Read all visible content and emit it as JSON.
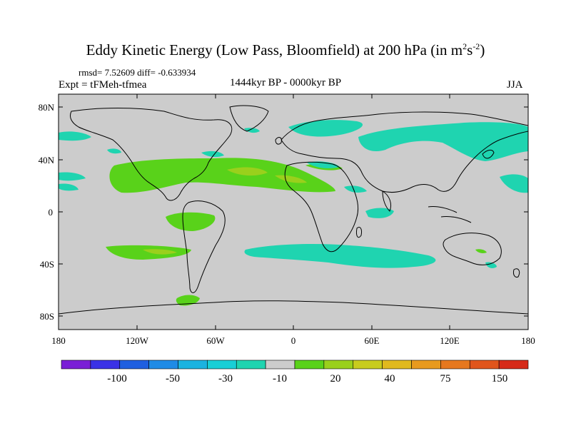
{
  "header": {
    "title": "Eddy Kinetic Energy (Low Pass, Bloomfield) at 200 hPa (in m",
    "title_sup1": "2",
    "title_mid": "s",
    "title_sup2": "-2",
    "title_end": ")",
    "stats": "rmsd= 7.52609 diff= -0.633934",
    "expt": "Expt = tFMeh-tfmea",
    "period": "1444kyr BP - 0000kyr BP",
    "season": "JJA"
  },
  "axes": {
    "lat_ticks": [
      "80N",
      "40N",
      "0",
      "40S",
      "80S"
    ],
    "lon_ticks": [
      "180",
      "120W",
      "60W",
      "0",
      "60E",
      "120E",
      "180"
    ]
  },
  "colorbar": {
    "labels": [
      "-100",
      "-50",
      "-30",
      "-10",
      "20",
      "40",
      "75",
      "150"
    ],
    "colors": [
      "#7a1fd6",
      "#3a32e6",
      "#1f5fe0",
      "#1f8be6",
      "#1bb3e0",
      "#18cfd6",
      "#1fd4b0",
      "#cccccc",
      "#59d21a",
      "#9ad01c",
      "#c8cc1e",
      "#e0b91e",
      "#e89a1e",
      "#e6781e",
      "#e0551c",
      "#d62a18"
    ]
  },
  "map": {
    "background": "#cccccc",
    "green": "#59d21a",
    "lightgreen": "#9ad01c",
    "cyan": "#1fd4b0"
  }
}
